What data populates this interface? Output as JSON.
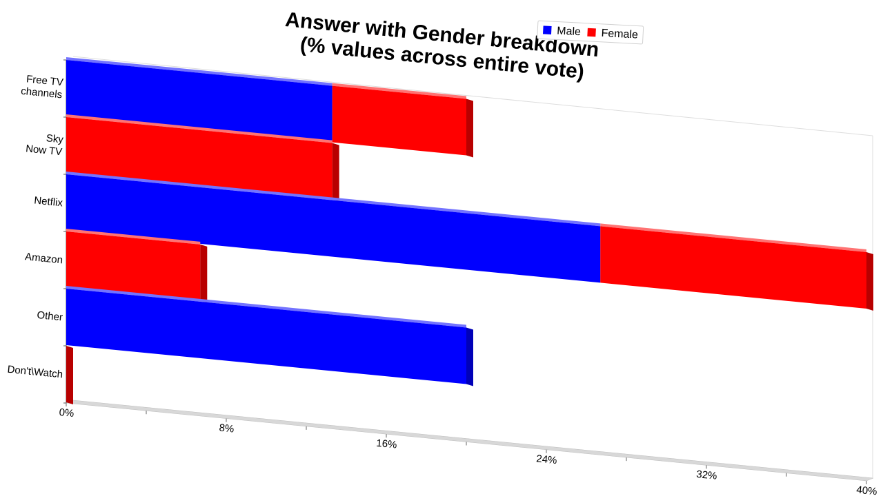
{
  "chart_data": {
    "type": "bar",
    "orientation": "horizontal",
    "stacked": true,
    "title": [
      "Answer with Gender breakdown",
      "(% values across entire vote)"
    ],
    "categories": [
      [
        "Free TV",
        "channels"
      ],
      [
        "Sky",
        "Now TV"
      ],
      [
        "Netflix"
      ],
      [
        "Amazon"
      ],
      [
        "Other"
      ],
      [
        "Don't\\Watch"
      ]
    ],
    "series": [
      {
        "name": "Male",
        "color": "#0000ff",
        "values": [
          13.3,
          0,
          26.7,
          0,
          20.0,
          0
        ]
      },
      {
        "name": "Female",
        "color": "#ff0000",
        "values": [
          6.7,
          13.3,
          13.3,
          6.7,
          0,
          0
        ]
      }
    ],
    "xlim": [
      0,
      40
    ],
    "xticks": [
      "0%",
      "8%",
      "16%",
      "24%",
      "32%",
      "40%"
    ],
    "legend": {
      "placement": "top-right"
    },
    "grid": false
  }
}
